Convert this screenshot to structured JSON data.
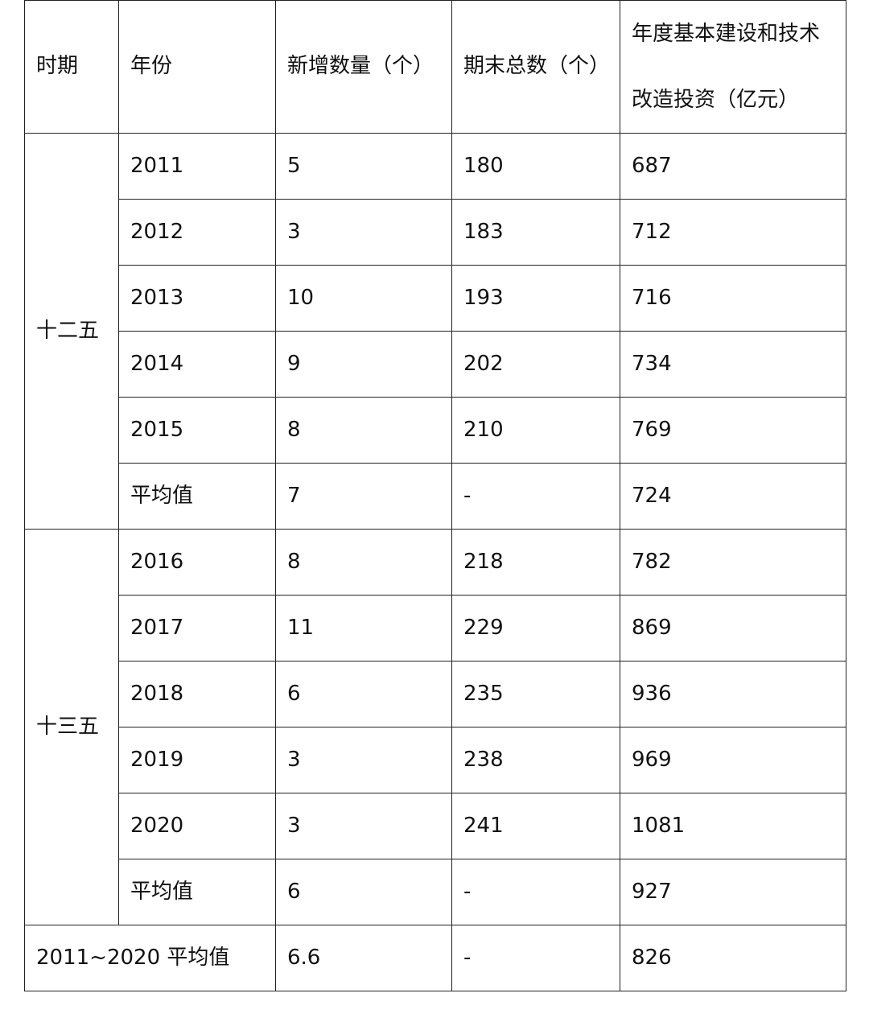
{
  "table": {
    "headers": [
      "时期",
      "年份",
      "新增数量（个）",
      "期末总数（个）",
      "年度基本建设和技术改造投资（亿元）"
    ],
    "groups": [
      {
        "period": "十二五",
        "rows": [
          {
            "year": "2011",
            "new": "5",
            "total": "180",
            "invest": "687"
          },
          {
            "year": "2012",
            "new": "3",
            "total": "183",
            "invest": "712"
          },
          {
            "year": "2013",
            "new": "10",
            "total": "193",
            "invest": "716"
          },
          {
            "year": "2014",
            "new": "9",
            "total": "202",
            "invest": "734"
          },
          {
            "year": "2015",
            "new": "8",
            "total": "210",
            "invest": "769"
          },
          {
            "year": "平均值",
            "new": "7",
            "total": "-",
            "invest": "724"
          }
        ]
      },
      {
        "period": "十三五",
        "rows": [
          {
            "year": "2016",
            "new": "8",
            "total": "218",
            "invest": "782"
          },
          {
            "year": "2017",
            "new": "11",
            "total": "229",
            "invest": "869"
          },
          {
            "year": "2018",
            "new": "6",
            "total": "235",
            "invest": "936"
          },
          {
            "year": "2019",
            "new": "3",
            "total": "238",
            "invest": "969"
          },
          {
            "year": "2020",
            "new": "3",
            "total": "241",
            "invest": "1081"
          },
          {
            "year": "平均值",
            "new": "6",
            "total": "-",
            "invest": "927"
          }
        ]
      }
    ],
    "overall": {
      "label": "2011~2020 平均值",
      "new": "6.6",
      "total": "-",
      "invest": "826"
    }
  }
}
